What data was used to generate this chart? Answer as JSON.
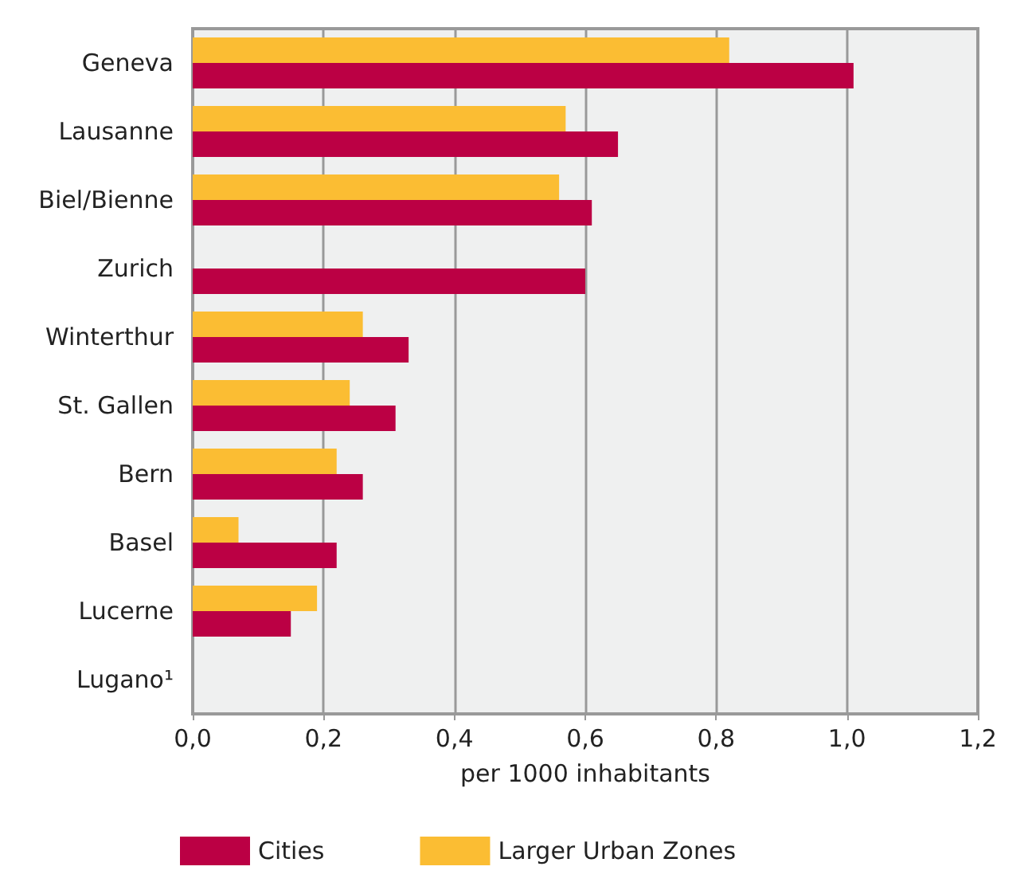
{
  "chart_data": {
    "type": "bar",
    "orientation": "horizontal",
    "xlabel": "per 1000 inhabitants",
    "categories": [
      "Geneva",
      "Lausanne",
      "Biel/Bienne",
      "Zurich",
      "Winterthur",
      "St. Gallen",
      "Bern",
      "Basel",
      "Lucerne",
      "Lugano¹"
    ],
    "series": [
      {
        "name": "Cities",
        "color": "#bb0044",
        "values": [
          1.01,
          0.65,
          0.61,
          0.6,
          0.33,
          0.31,
          0.26,
          0.22,
          0.15,
          null
        ]
      },
      {
        "name": "Larger Urban Zones",
        "color": "#fbbd33",
        "values": [
          0.82,
          0.57,
          0.56,
          null,
          0.26,
          0.24,
          0.22,
          0.07,
          0.19,
          null
        ]
      }
    ],
    "xlim": [
      0,
      1.2
    ],
    "xticks": [
      {
        "value": 0,
        "label": "0,0"
      },
      {
        "value": 0.2,
        "label": "0,2"
      },
      {
        "value": 0.4,
        "label": "0,4"
      },
      {
        "value": 0.6,
        "label": "0,6"
      },
      {
        "value": 0.8,
        "label": "0,8"
      },
      {
        "value": 1,
        "label": "1,0"
      },
      {
        "value": 1.2,
        "label": "1,2"
      }
    ],
    "grid": "x",
    "legend": "bottom"
  }
}
